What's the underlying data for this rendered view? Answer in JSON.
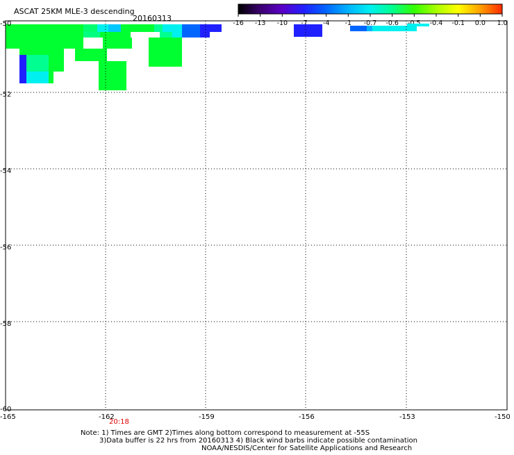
{
  "header": {
    "title": "ASCAT 25KM MLE-3 descending",
    "date": "20160313"
  },
  "colorbar": {
    "labels": [
      "-16",
      "-13",
      "-10",
      "-7",
      "-4",
      "-1",
      "-0.7",
      "-0.6",
      "-0.5",
      "-0.4",
      "-0.1",
      "0.0",
      "1.0"
    ],
    "colors": [
      "#000000",
      "#3b0070",
      "#5a00c8",
      "#2020ff",
      "#0066ff",
      "#00b4ff",
      "#00f0f0",
      "#00ff90",
      "#33ff00",
      "#a8ff00",
      "#ffff00",
      "#ffa000",
      "#ff2a00"
    ]
  },
  "map": {
    "lon_labels": [
      "-165",
      "-162",
      "-159",
      "-156",
      "-153",
      "-150"
    ],
    "lat_labels": [
      "-50",
      "-52",
      "-54",
      "-56",
      "-58",
      "-60"
    ],
    "time_label": "20:18"
  },
  "notes": {
    "line1": "Note: 1) Times are GMT 2)Times along bottom correspond to measurement at -55S",
    "line2": "3)Data buffer is 22 hrs from 20160313 4) Black wind barbs indicate possible contamination",
    "line3": "NOAA/NESDIS/Center for Satellite Applications and Research"
  }
}
